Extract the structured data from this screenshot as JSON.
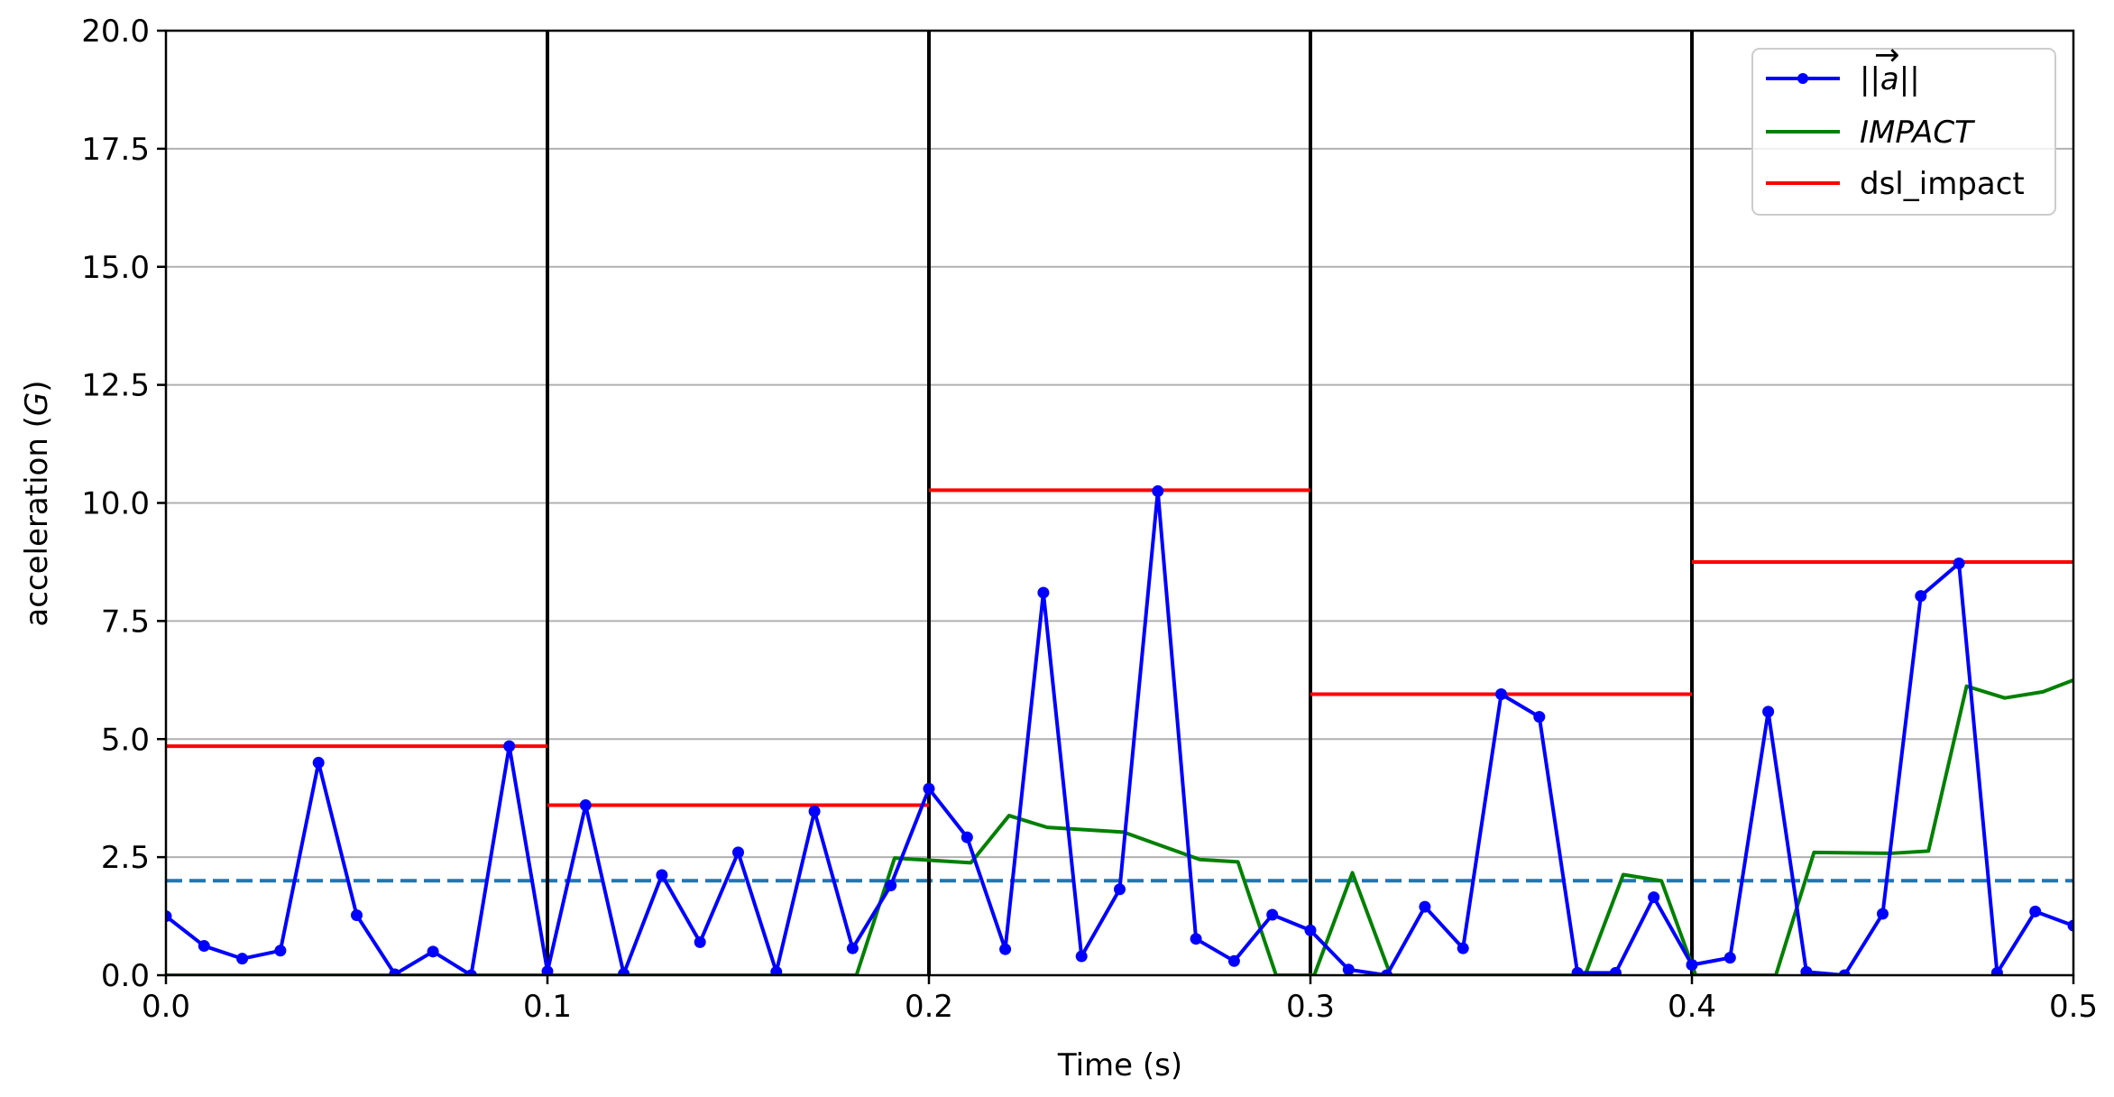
{
  "chart_data": {
    "type": "line",
    "title": "",
    "xlabel": "Time (s)",
    "ylabel": "acceleration (G)",
    "xlim": [
      0.0,
      0.5
    ],
    "ylim": [
      0.0,
      20.0
    ],
    "x_ticks": [
      "0.0",
      "0.1",
      "0.2",
      "0.3",
      "0.4",
      "0.5"
    ],
    "y_ticks": [
      "0.0",
      "2.5",
      "5.0",
      "7.5",
      "10.0",
      "12.5",
      "15.0",
      "17.5",
      "20.0"
    ],
    "grid": "horizontal",
    "legend_position": "top-right",
    "window_boundaries": [
      0.1,
      0.2,
      0.3,
      0.4
    ],
    "threshold": {
      "y": 2.0,
      "color": "#1f77b4",
      "style": "dashed"
    },
    "series": [
      {
        "name": "||a||",
        "color": "#0000ff",
        "marker": "circle",
        "x": [
          0.0,
          0.01,
          0.02,
          0.03,
          0.04,
          0.05,
          0.06,
          0.07,
          0.08,
          0.09,
          0.1,
          0.11,
          0.12,
          0.13,
          0.14,
          0.15,
          0.16,
          0.17,
          0.18,
          0.19,
          0.2,
          0.21,
          0.22,
          0.23,
          0.24,
          0.25,
          0.26,
          0.27,
          0.28,
          0.29,
          0.3,
          0.31,
          0.32,
          0.33,
          0.34,
          0.35,
          0.36,
          0.37,
          0.38,
          0.39,
          0.4,
          0.41,
          0.42,
          0.43,
          0.44,
          0.45,
          0.46,
          0.47,
          0.48,
          0.49,
          0.5
        ],
        "y": [
          1.25,
          0.62,
          0.35,
          0.52,
          4.5,
          1.27,
          0.02,
          0.5,
          0.0,
          4.85,
          0.08,
          3.6,
          0.03,
          2.12,
          0.7,
          2.6,
          0.07,
          3.47,
          0.57,
          1.9,
          3.95,
          2.92,
          0.55,
          8.1,
          0.4,
          1.82,
          10.25,
          0.77,
          0.3,
          1.28,
          0.95,
          0.12,
          0.0,
          1.45,
          0.57,
          5.95,
          5.47,
          0.05,
          0.05,
          1.65,
          0.22,
          0.37,
          5.58,
          0.07,
          0.0,
          1.3,
          8.03,
          8.72,
          0.05,
          1.35,
          1.05
        ]
      },
      {
        "name": "IMPACT",
        "color": "#008000",
        "x": [
          0.0,
          0.181,
          0.191,
          0.211,
          0.221,
          0.231,
          0.251,
          0.271,
          0.281,
          0.291,
          0.301,
          0.311,
          0.321,
          0.372,
          0.382,
          0.392,
          0.401,
          0.411,
          0.422,
          0.432,
          0.452,
          0.462,
          0.472,
          0.482,
          0.492,
          0.5
        ],
        "y": [
          0.0,
          0.0,
          2.48,
          2.38,
          3.38,
          3.13,
          3.03,
          2.45,
          2.4,
          0.0,
          0.0,
          2.17,
          0.0,
          0.0,
          2.13,
          2.0,
          0.0,
          0.0,
          0.0,
          2.6,
          2.58,
          2.63,
          6.12,
          5.87,
          6.0,
          6.25
        ]
      },
      {
        "name": "dsl_impact",
        "color": "#ff0000",
        "segments": [
          {
            "x": [
              0.0,
              0.1
            ],
            "y": 4.85
          },
          {
            "x": [
              0.1,
              0.2
            ],
            "y": 3.6
          },
          {
            "x": [
              0.2,
              0.3
            ],
            "y": 10.27
          },
          {
            "x": [
              0.3,
              0.4
            ],
            "y": 5.95
          },
          {
            "x": [
              0.4,
              0.5
            ],
            "y": 8.75
          }
        ]
      }
    ]
  }
}
